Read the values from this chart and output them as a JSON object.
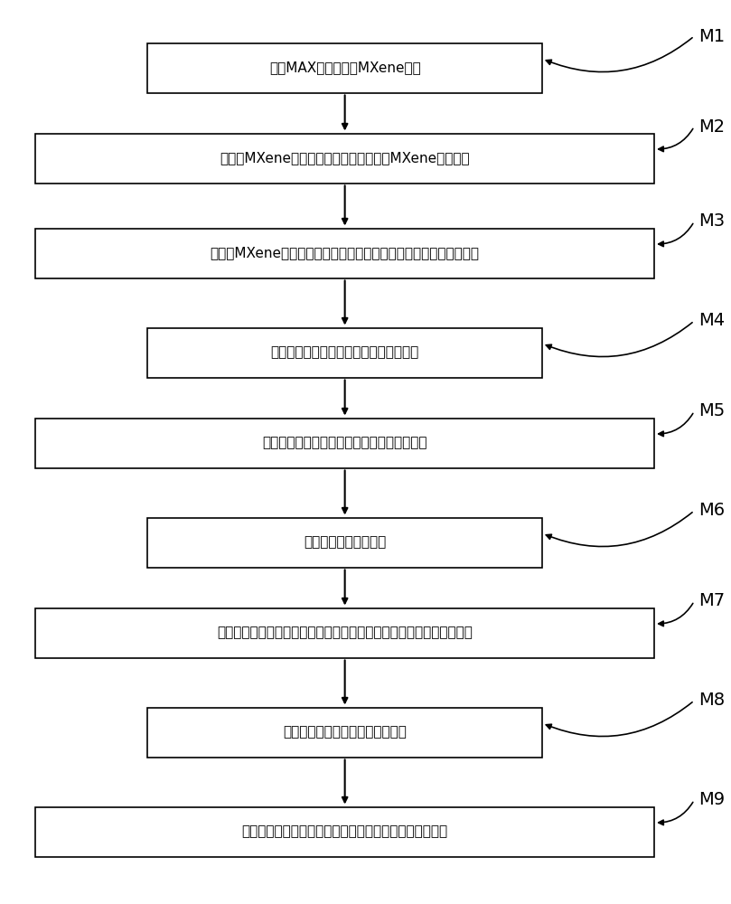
{
  "bg_color": "#ffffff",
  "box_color": "#ffffff",
  "box_edge_color": "#000000",
  "text_color": "#000000",
  "arrow_color": "#000000",
  "steps": [
    {
      "id": "M1",
      "text": "刻蚀MAX相材料得到MXene材料",
      "wide": false
    },
    {
      "id": "M2",
      "text": "在所述MXene材料中添加导电材料，得到MXene复合材料",
      "wide": true
    },
    {
      "id": "M3",
      "text": "将所述MXene复合材料修饰到支撑材料上，形成应变传感器的敏感层",
      "wide": true
    },
    {
      "id": "M4",
      "text": "在基底上涂覆弹性电极支撑层，并图形化",
      "wide": false
    },
    {
      "id": "M5",
      "text": "在所述支持层上利用剥离工艺制备电极导电层",
      "wide": true
    },
    {
      "id": "M6",
      "text": "去除基底得到弹性电极",
      "wide": false
    },
    {
      "id": "M7",
      "text": "浇铸弹性聚合物制备弹性衬底，将所述弹性电极转移至所述弹性衬底上",
      "wide": true
    },
    {
      "id": "M8",
      "text": "将所述敏感层置于所述弹性电极上",
      "wide": false
    },
    {
      "id": "M9",
      "text": "浇铸弹性聚合物并固化，完成所述弹性应变传感器的封装",
      "wide": true
    }
  ],
  "font_size": 11,
  "label_font_size": 14
}
